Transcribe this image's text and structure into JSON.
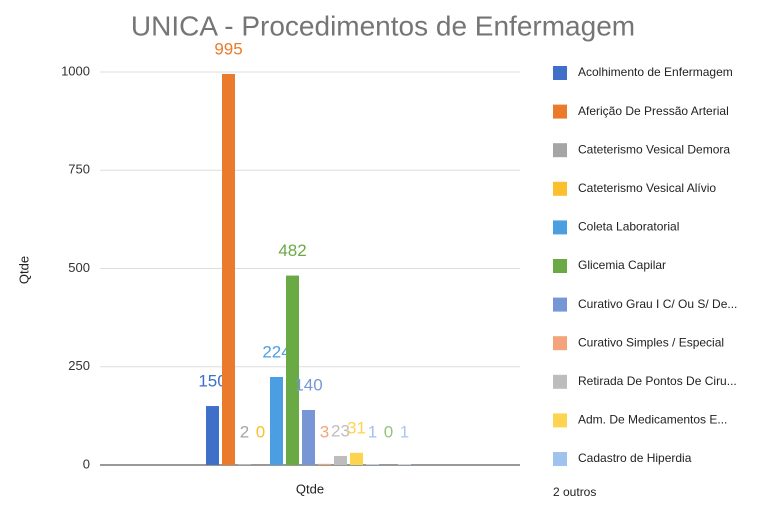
{
  "chart_data": {
    "type": "bar",
    "title": "UNICA - Procedimentos de Enfermagem",
    "categories": [
      "Qtde"
    ],
    "y_label": "Qtde",
    "ylim": [
      0,
      1000
    ],
    "yticks": [
      0,
      250,
      500,
      750,
      1000
    ],
    "grid": true,
    "series": [
      {
        "name": "Acolhimento de Enfermagem",
        "color": "#3e6fc9",
        "values": [
          150
        ]
      },
      {
        "name": "Aferição De Pressão Arterial",
        "color": "#ea7b2c",
        "values": [
          995
        ]
      },
      {
        "name": "Cateterismo Vesical Demora",
        "color": "#a5a5a5",
        "values": [
          2
        ]
      },
      {
        "name": "Cateterismo Vesical Alívio",
        "color": "#fbc02d",
        "values": [
          0
        ]
      },
      {
        "name": "Coleta Laboratorial",
        "color": "#4c9ee3",
        "values": [
          224
        ]
      },
      {
        "name": "Glicemia Capilar",
        "color": "#6aaa45",
        "values": [
          482
        ]
      },
      {
        "name": "Curativo Grau I C/ Ou S/ De...",
        "color": "#7896d6",
        "values": [
          140
        ]
      },
      {
        "name": "Curativo Simples / Especial",
        "color": "#f3a47a",
        "values": [
          3
        ]
      },
      {
        "name": "Retirada De Pontos De Ciru...",
        "color": "#bdbdbd",
        "values": [
          23
        ]
      },
      {
        "name": "Adm. De Medicamentos E...",
        "color": "#fcd44f",
        "values": [
          31
        ]
      },
      {
        "name": "Cadastro de Hiperdia",
        "color": "#9fc3ec",
        "values": [
          1
        ]
      },
      {
        "color": "#93c47d",
        "values": [
          0
        ]
      },
      {
        "color": "#a9c8ee",
        "values": [
          1
        ]
      }
    ],
    "legend_more": "2 outros"
  }
}
